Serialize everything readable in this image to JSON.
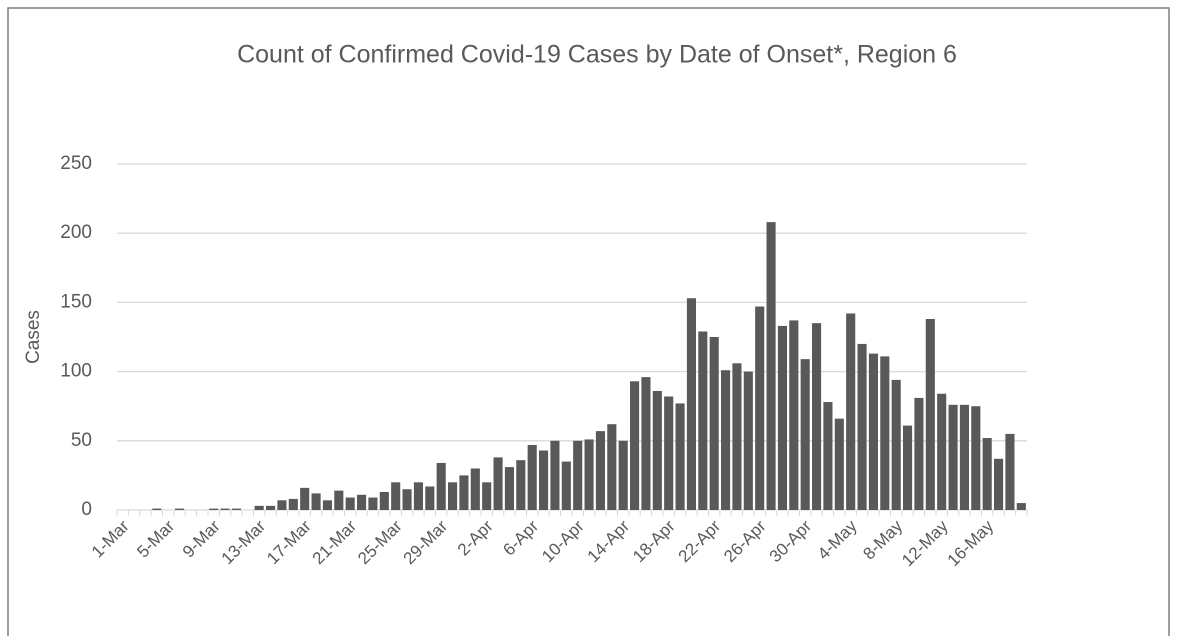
{
  "chart_data": {
    "type": "bar",
    "title": "Count of Confirmed Covid-19 Cases by Date of Onset*, Region 6",
    "y_label": "Cases",
    "categories": [
      "1-Mar",
      null,
      null,
      null,
      "5-Mar",
      null,
      null,
      null,
      "9-Mar",
      null,
      null,
      null,
      "13-Mar",
      null,
      null,
      null,
      "17-Mar",
      null,
      null,
      null,
      "21-Mar",
      null,
      null,
      null,
      "25-Mar",
      null,
      null,
      null,
      "29-Mar",
      null,
      null,
      null,
      "2-Apr",
      null,
      null,
      null,
      "6-Apr",
      null,
      null,
      null,
      "10-Apr",
      null,
      null,
      null,
      "14-Apr",
      null,
      null,
      null,
      "18-Apr",
      null,
      null,
      null,
      "22-Apr",
      null,
      null,
      null,
      "26-Apr",
      null,
      null,
      null,
      "30-Apr",
      null,
      null,
      null,
      "4-May",
      null,
      null,
      null,
      "8-May",
      null,
      null,
      null,
      "12-May",
      null,
      null,
      null,
      "16-May",
      null,
      null,
      null
    ],
    "values": [
      0,
      0,
      0,
      1,
      0,
      1,
      0,
      0,
      1,
      1,
      1,
      0,
      3,
      3,
      7,
      8,
      16,
      12,
      7,
      14,
      9,
      11,
      9,
      13,
      20,
      15,
      20,
      17,
      34,
      20,
      25,
      30,
      20,
      38,
      31,
      36,
      47,
      43,
      50,
      35,
      50,
      51,
      57,
      62,
      50,
      93,
      96,
      86,
      82,
      77,
      153,
      129,
      125,
      101,
      106,
      100,
      147,
      208,
      133,
      137,
      109,
      135,
      78,
      66,
      142,
      120,
      113,
      111,
      94,
      61,
      81,
      138,
      84,
      76,
      76,
      75,
      52,
      37,
      55,
      5
    ],
    "color": "#595959",
    "ylim": [
      0,
      250
    ],
    "yticks": [
      0,
      50,
      100,
      150,
      200,
      250
    ],
    "grid": true
  }
}
